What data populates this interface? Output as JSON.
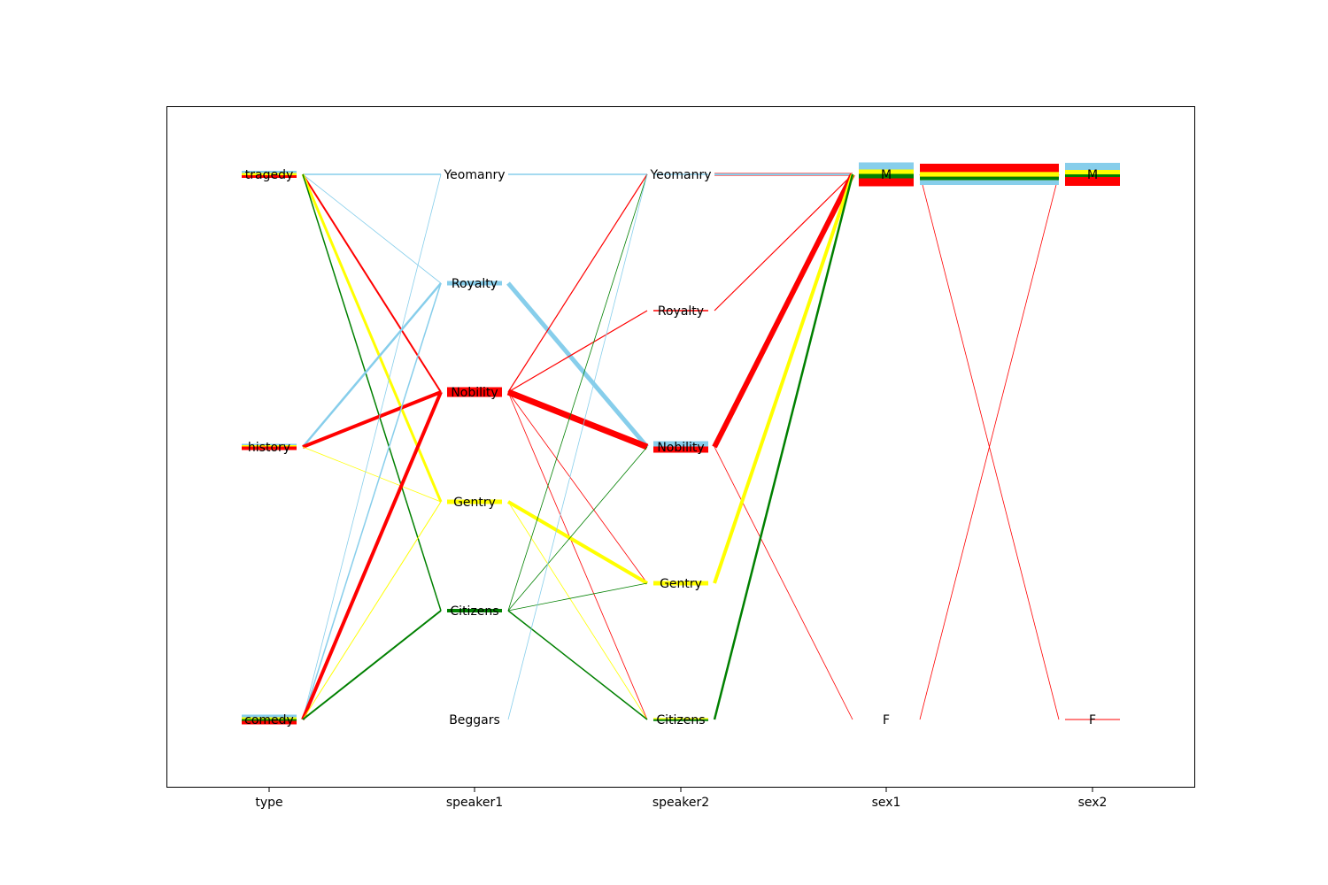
{
  "chart_data": {
    "type": "parallel-sets",
    "axes": [
      {
        "name": "type",
        "categories": [
          "tragedy",
          "history",
          "comedy"
        ]
      },
      {
        "name": "speaker1",
        "categories": [
          "Yeomanry",
          "Royalty",
          "Nobility",
          "Gentry",
          "Citizens",
          "Beggars"
        ]
      },
      {
        "name": "speaker2",
        "categories": [
          "Yeomanry",
          "Royalty",
          "Nobility",
          "Gentry",
          "Citizens"
        ]
      },
      {
        "name": "sex1",
        "categories": [
          "M",
          "F"
        ]
      },
      {
        "name": "sex2",
        "categories": [
          "M",
          "F"
        ]
      }
    ],
    "colors": {
      "Royalty": "#87CEEB",
      "Gentry": "#FFFF00",
      "Citizens": "#008000",
      "Nobility": "#FF0000"
    },
    "flows": [
      {
        "from": [
          "type",
          "tragedy"
        ],
        "to": [
          "speaker1",
          "Yeomanry"
        ],
        "color": "Royalty",
        "w": 1.5
      },
      {
        "from": [
          "type",
          "tragedy"
        ],
        "to": [
          "speaker1",
          "Royalty"
        ],
        "color": "Royalty",
        "w": 0.8
      },
      {
        "from": [
          "type",
          "tragedy"
        ],
        "to": [
          "speaker1",
          "Nobility"
        ],
        "color": "Nobility",
        "w": 2
      },
      {
        "from": [
          "type",
          "tragedy"
        ],
        "to": [
          "speaker1",
          "Gentry"
        ],
        "color": "Gentry",
        "w": 3
      },
      {
        "from": [
          "type",
          "tragedy"
        ],
        "to": [
          "speaker1",
          "Citizens"
        ],
        "color": "Citizens",
        "w": 1.5
      },
      {
        "from": [
          "type",
          "history"
        ],
        "to": [
          "speaker1",
          "Royalty"
        ],
        "color": "Royalty",
        "w": 2.5
      },
      {
        "from": [
          "type",
          "history"
        ],
        "to": [
          "speaker1",
          "Nobility"
        ],
        "color": "Nobility",
        "w": 4
      },
      {
        "from": [
          "type",
          "history"
        ],
        "to": [
          "speaker1",
          "Gentry"
        ],
        "color": "Gentry",
        "w": 0.8
      },
      {
        "from": [
          "type",
          "comedy"
        ],
        "to": [
          "speaker1",
          "Yeomanry"
        ],
        "color": "Royalty",
        "w": 0.8
      },
      {
        "from": [
          "type",
          "comedy"
        ],
        "to": [
          "speaker1",
          "Royalty"
        ],
        "color": "Royalty",
        "w": 1.5
      },
      {
        "from": [
          "type",
          "comedy"
        ],
        "to": [
          "speaker1",
          "Nobility"
        ],
        "color": "Nobility",
        "w": 4
      },
      {
        "from": [
          "type",
          "comedy"
        ],
        "to": [
          "speaker1",
          "Gentry"
        ],
        "color": "Gentry",
        "w": 1
      },
      {
        "from": [
          "type",
          "comedy"
        ],
        "to": [
          "speaker1",
          "Citizens"
        ],
        "color": "Citizens",
        "w": 2
      },
      {
        "from": [
          "speaker1",
          "Yeomanry"
        ],
        "to": [
          "speaker2",
          "Yeomanry"
        ],
        "color": "Royalty",
        "w": 1.5
      },
      {
        "from": [
          "speaker1",
          "Royalty"
        ],
        "to": [
          "speaker2",
          "Nobility"
        ],
        "color": "Royalty",
        "w": 5
      },
      {
        "from": [
          "speaker1",
          "Nobility"
        ],
        "to": [
          "speaker2",
          "Yeomanry"
        ],
        "color": "Nobility",
        "w": 1.2
      },
      {
        "from": [
          "speaker1",
          "Nobility"
        ],
        "to": [
          "speaker2",
          "Royalty"
        ],
        "color": "Nobility",
        "w": 1.2
      },
      {
        "from": [
          "speaker1",
          "Nobility"
        ],
        "to": [
          "speaker2",
          "Nobility"
        ],
        "color": "Nobility",
        "w": 7
      },
      {
        "from": [
          "speaker1",
          "Nobility"
        ],
        "to": [
          "speaker2",
          "Gentry"
        ],
        "color": "Nobility",
        "w": 0.8
      },
      {
        "from": [
          "speaker1",
          "Nobility"
        ],
        "to": [
          "speaker2",
          "Citizens"
        ],
        "color": "Nobility",
        "w": 0.8
      },
      {
        "from": [
          "speaker1",
          "Gentry"
        ],
        "to": [
          "speaker2",
          "Gentry"
        ],
        "color": "Gentry",
        "w": 4
      },
      {
        "from": [
          "speaker1",
          "Gentry"
        ],
        "to": [
          "speaker2",
          "Citizens"
        ],
        "color": "Gentry",
        "w": 0.8
      },
      {
        "from": [
          "speaker1",
          "Citizens"
        ],
        "to": [
          "speaker2",
          "Yeomanry"
        ],
        "color": "Citizens",
        "w": 0.8
      },
      {
        "from": [
          "speaker1",
          "Citizens"
        ],
        "to": [
          "speaker2",
          "Nobility"
        ],
        "color": "Citizens",
        "w": 0.8
      },
      {
        "from": [
          "speaker1",
          "Citizens"
        ],
        "to": [
          "speaker2",
          "Gentry"
        ],
        "color": "Citizens",
        "w": 0.8
      },
      {
        "from": [
          "speaker1",
          "Citizens"
        ],
        "to": [
          "speaker2",
          "Citizens"
        ],
        "color": "Citizens",
        "w": 1.5
      },
      {
        "from": [
          "speaker1",
          "Beggars"
        ],
        "to": [
          "speaker2",
          "Yeomanry"
        ],
        "color": "Royalty",
        "w": 0.8
      },
      {
        "from": [
          "speaker2",
          "Yeomanry"
        ],
        "to": [
          "sex1",
          "M"
        ],
        "color": "Nobility",
        "w": 3
      },
      {
        "from": [
          "speaker2",
          "Yeomanry"
        ],
        "to": [
          "sex1",
          "M"
        ],
        "color": "Royalty",
        "w": 2
      },
      {
        "from": [
          "speaker2",
          "Royalty"
        ],
        "to": [
          "sex1",
          "M"
        ],
        "color": "Nobility",
        "w": 1.2
      },
      {
        "from": [
          "speaker2",
          "Nobility"
        ],
        "to": [
          "sex1",
          "M"
        ],
        "color": "Royalty",
        "w": 6
      },
      {
        "from": [
          "speaker2",
          "Nobility"
        ],
        "to": [
          "sex1",
          "M"
        ],
        "color": "Nobility",
        "w": 6
      },
      {
        "from": [
          "speaker2",
          "Nobility"
        ],
        "to": [
          "sex1",
          "F"
        ],
        "color": "Nobility",
        "w": 0.8
      },
      {
        "from": [
          "speaker2",
          "Gentry"
        ],
        "to": [
          "sex1",
          "M"
        ],
        "color": "Gentry",
        "w": 4
      },
      {
        "from": [
          "speaker2",
          "Citizens"
        ],
        "to": [
          "sex1",
          "M"
        ],
        "color": "Citizens",
        "w": 2.5
      },
      {
        "from": [
          "sex1",
          "M"
        ],
        "to": [
          "sex2",
          "M"
        ],
        "color": "Royalty",
        "w": 4
      },
      {
        "from": [
          "sex1",
          "M"
        ],
        "to": [
          "sex2",
          "M"
        ],
        "color": "Gentry",
        "w": 4
      },
      {
        "from": [
          "sex1",
          "M"
        ],
        "to": [
          "sex2",
          "M"
        ],
        "color": "Citizens",
        "w": 3
      },
      {
        "from": [
          "sex1",
          "M"
        ],
        "to": [
          "sex2",
          "M"
        ],
        "color": "Nobility",
        "w": 7
      },
      {
        "from": [
          "sex1",
          "M"
        ],
        "to": [
          "sex2",
          "F"
        ],
        "color": "Nobility",
        "w": 0.8
      },
      {
        "from": [
          "sex1",
          "F"
        ],
        "to": [
          "sex2",
          "M"
        ],
        "color": "Nobility",
        "w": 0.8
      }
    ],
    "node_bars": [
      {
        "axis": "type",
        "cat": "tragedy",
        "parts": [
          [
            "Royalty",
            2.5
          ],
          [
            "Gentry",
            2.5
          ],
          [
            "Nobility",
            3
          ]
        ]
      },
      {
        "axis": "type",
        "cat": "history",
        "parts": [
          [
            "Royalty",
            1.5
          ],
          [
            "Gentry",
            1.5
          ],
          [
            "Nobility",
            4
          ]
        ]
      },
      {
        "axis": "type",
        "cat": "comedy",
        "parts": [
          [
            "Royalty",
            3
          ],
          [
            "Gentry",
            2
          ],
          [
            "Citizens",
            2
          ],
          [
            "Nobility",
            4
          ]
        ]
      },
      {
        "axis": "speaker1",
        "cat": "Royalty",
        "parts": [
          [
            "Royalty",
            5
          ]
        ]
      },
      {
        "axis": "speaker1",
        "cat": "Nobility",
        "parts": [
          [
            "Nobility",
            11
          ]
        ]
      },
      {
        "axis": "speaker1",
        "cat": "Gentry",
        "parts": [
          [
            "Gentry",
            5
          ]
        ]
      },
      {
        "axis": "speaker1",
        "cat": "Citizens",
        "parts": [
          [
            "Citizens",
            4
          ]
        ]
      },
      {
        "axis": "speaker2",
        "cat": "Yeomanry",
        "parts": [
          [
            "Royalty",
            1.5
          ]
        ]
      },
      {
        "axis": "speaker2",
        "cat": "Royalty",
        "parts": [
          [
            "Nobility",
            1.5
          ]
        ]
      },
      {
        "axis": "speaker2",
        "cat": "Nobility",
        "parts": [
          [
            "Royalty",
            6
          ],
          [
            "Nobility",
            7
          ]
        ]
      },
      {
        "axis": "speaker2",
        "cat": "Gentry",
        "parts": [
          [
            "Gentry",
            5
          ]
        ]
      },
      {
        "axis": "speaker2",
        "cat": "Citizens",
        "parts": [
          [
            "Gentry",
            1.5
          ],
          [
            "Citizens",
            2
          ]
        ]
      },
      {
        "axis": "sex1",
        "cat": "M",
        "parts": [
          [
            "Royalty",
            8
          ],
          [
            "Gentry",
            5
          ],
          [
            "Citizens",
            5
          ],
          [
            "Nobility",
            9
          ]
        ]
      },
      {
        "axis": "sex2",
        "cat": "M",
        "parts": [
          [
            "Royalty",
            8
          ],
          [
            "Gentry",
            5
          ],
          [
            "Citizens",
            3
          ],
          [
            "Nobility",
            10
          ]
        ]
      },
      {
        "axis": "sex2",
        "cat": "F",
        "parts": [
          [
            "Nobility",
            1
          ]
        ]
      }
    ]
  }
}
